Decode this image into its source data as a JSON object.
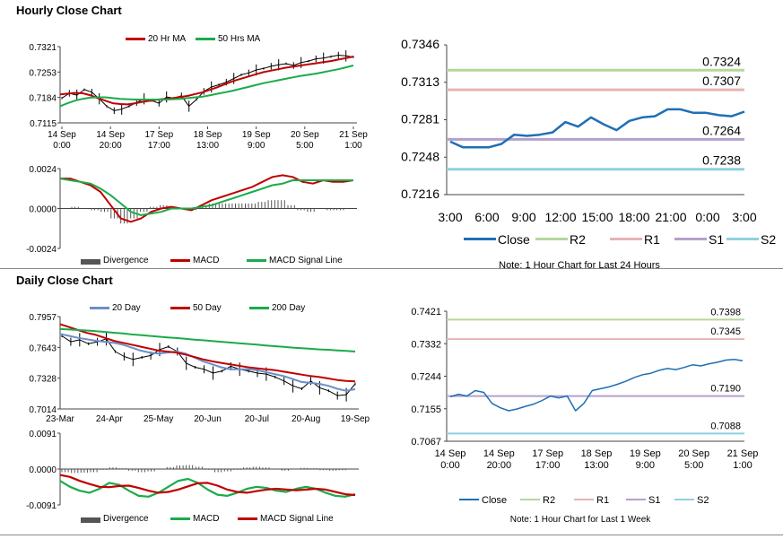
{
  "sections": {
    "hourly_title": "Hourly Close Chart",
    "daily_title": "Daily Close Chart"
  },
  "colors": {
    "ma_short": "#c00000",
    "ma_long": "#1aab4b",
    "close": "#1f6fb5",
    "r2": "#b5d79a",
    "r1": "#e6b3b3",
    "s1": "#b3a1cc",
    "s2": "#8fd0e0",
    "ma20_daily": "#6b8fc9",
    "divergence": "#555555"
  },
  "chart_data": [
    {
      "id": "hourly_price",
      "type": "line",
      "legend": [
        "20 Hr MA",
        "50 Hrs MA"
      ],
      "y_ticks": [
        "0.7321",
        "0.7253",
        "0.7184",
        "0.7115"
      ],
      "ylim": [
        0.7115,
        0.7321
      ],
      "x_labels": [
        [
          "14 Sep",
          "0:00"
        ],
        [
          "14 Sep",
          "20:00"
        ],
        [
          "17 Sep",
          "17:00"
        ],
        [
          "18 Sep",
          "13:00"
        ],
        [
          "19 Sep",
          "9:00"
        ],
        [
          "20 Sep",
          "5:00"
        ],
        [
          "21 Sep",
          "1:00"
        ]
      ],
      "series": [
        {
          "name": "Price",
          "values": [
            0.7182,
            0.7195,
            0.719,
            0.7205,
            0.7198,
            0.718,
            0.716,
            0.7148,
            0.7152,
            0.716,
            0.717,
            0.718,
            0.7175,
            0.7168,
            0.7185,
            0.7182,
            0.7188,
            0.716,
            0.7178,
            0.72,
            0.7212,
            0.7218,
            0.7225,
            0.7235,
            0.7245,
            0.725,
            0.7258,
            0.7262,
            0.7268,
            0.7272,
            0.7275,
            0.727,
            0.7278,
            0.7282,
            0.7288,
            0.729,
            0.7294,
            0.7298,
            0.7296,
            0.7293
          ]
        },
        {
          "name": "20 Hr MA",
          "values": [
            0.7192,
            0.7194,
            0.7196,
            0.7195,
            0.719,
            0.7182,
            0.7175,
            0.7168,
            0.7166,
            0.7165,
            0.7168,
            0.7172,
            0.7175,
            0.7178,
            0.718,
            0.7182,
            0.7185,
            0.7188,
            0.7193,
            0.7198,
            0.7205,
            0.7212,
            0.722,
            0.7228,
            0.7234,
            0.724,
            0.7246,
            0.7252,
            0.7256,
            0.726,
            0.7264,
            0.7267,
            0.727,
            0.7273,
            0.7276,
            0.7279,
            0.7282,
            0.7286,
            0.729,
            0.7294
          ]
        },
        {
          "name": "50 Hrs MA",
          "values": [
            0.716,
            0.7168,
            0.7175,
            0.718,
            0.7183,
            0.7184,
            0.7184,
            0.7182,
            0.718,
            0.7179,
            0.7178,
            0.7178,
            0.7178,
            0.7178,
            0.7178,
            0.7179,
            0.718,
            0.7182,
            0.7184,
            0.7186,
            0.719,
            0.7194,
            0.7198,
            0.7202,
            0.7207,
            0.7212,
            0.7217,
            0.7222,
            0.7226,
            0.723,
            0.7234,
            0.7238,
            0.7242,
            0.7245,
            0.7248,
            0.7252,
            0.7256,
            0.726,
            0.7265,
            0.727
          ]
        }
      ]
    },
    {
      "id": "hourly_macd",
      "type": "line",
      "legend": [
        "Divergence",
        "MACD",
        "MACD Signal Line"
      ],
      "y_ticks": [
        "0.0024",
        "0.0000",
        "-0.0024"
      ],
      "ylim": [
        -0.0024,
        0.0024
      ],
      "series": [
        {
          "name": "MACD",
          "values": [
            0.0018,
            0.0018,
            0.0016,
            0.0014,
            0.001,
            0.0002,
            -0.0006,
            -0.0008,
            -0.0006,
            -0.0002,
            0.0,
            0.0001,
            0.0,
            -0.0001,
            0.0002,
            0.0005,
            0.0007,
            0.0009,
            0.0011,
            0.0013,
            0.0016,
            0.0019,
            0.002,
            0.0019,
            0.0016,
            0.0015,
            0.0017,
            0.0016,
            0.0016,
            0.0017
          ]
        },
        {
          "name": "MACD Signal Line",
          "values": [
            0.0018,
            0.0017,
            0.0016,
            0.0015,
            0.0012,
            0.0008,
            0.0003,
            -0.0002,
            -0.0004,
            -0.0003,
            -0.0002,
            0.0,
            0.0,
            0.0,
            0.0001,
            0.0002,
            0.0004,
            0.0006,
            0.0008,
            0.001,
            0.0012,
            0.0014,
            0.0015,
            0.0017,
            0.0017,
            0.0017,
            0.0017,
            0.0017,
            0.0017,
            0.0017
          ]
        },
        {
          "name": "Divergence",
          "values": [
            0.0,
            0.0001,
            0.0,
            -0.0001,
            -0.0002,
            -0.0006,
            -0.0009,
            -0.0006,
            -0.0002,
            0.0001,
            0.0002,
            0.0001,
            0.0,
            -0.0001,
            0.0001,
            0.0003,
            0.0003,
            0.0003,
            0.0003,
            0.0003,
            0.0004,
            0.0005,
            0.0005,
            0.0002,
            -0.0001,
            -0.0002,
            0.0,
            -0.0001,
            -0.0001,
            0.0
          ]
        }
      ]
    },
    {
      "id": "hourly_24h",
      "type": "line",
      "title": "",
      "y_ticks": [
        "0.7346",
        "0.7313",
        "0.7281",
        "0.7248",
        "0.7216"
      ],
      "ylim": [
        0.7216,
        0.7346
      ],
      "x_labels": [
        "3:00",
        "6:00",
        "9:00",
        "12:00",
        "15:00",
        "18:00",
        "21:00",
        "0:00",
        "3:00"
      ],
      "legend": [
        "Close",
        "R2",
        "R1",
        "S1",
        "S2"
      ],
      "levels": [
        {
          "name": "R2",
          "value": 0.7324,
          "label": "0.7324"
        },
        {
          "name": "R1",
          "value": 0.7307,
          "label": "0.7307"
        },
        {
          "name": "S1",
          "value": 0.7264,
          "label": "0.7264"
        },
        {
          "name": "S2",
          "value": 0.7238,
          "label": "0.7238"
        }
      ],
      "series": [
        {
          "name": "Close",
          "values": [
            0.7262,
            0.7257,
            0.7257,
            0.7257,
            0.726,
            0.7268,
            0.7267,
            0.7268,
            0.727,
            0.7279,
            0.7275,
            0.7283,
            0.7277,
            0.7272,
            0.728,
            0.7283,
            0.7284,
            0.729,
            0.729,
            0.7287,
            0.7287,
            0.7285,
            0.7284,
            0.7288
          ]
        }
      ],
      "note": "Note: 1 Hour Chart for Last 24 Hours"
    },
    {
      "id": "daily_price",
      "type": "line",
      "legend": [
        "20 Day",
        "50 Day",
        "200 Day"
      ],
      "y_ticks": [
        "0.7957",
        "0.7643",
        "0.7328",
        "0.7014"
      ],
      "ylim": [
        0.7014,
        0.7957
      ],
      "x_labels": [
        "23-Mar",
        "24-Apr",
        "25-May",
        "20-Jun",
        "20-Jul",
        "20-Aug",
        "19-Sep"
      ],
      "series": [
        {
          "name": "Price",
          "values": [
            0.776,
            0.77,
            0.772,
            0.768,
            0.77,
            0.773,
            0.76,
            0.755,
            0.752,
            0.754,
            0.756,
            0.762,
            0.765,
            0.76,
            0.748,
            0.744,
            0.742,
            0.738,
            0.74,
            0.745,
            0.742,
            0.74,
            0.738,
            0.737,
            0.734,
            0.73,
            0.725,
            0.722,
            0.73,
            0.723,
            0.72,
            0.715,
            0.716,
            0.727
          ]
        },
        {
          "name": "20 Day",
          "values": [
            0.778,
            0.776,
            0.774,
            0.7725,
            0.771,
            0.77,
            0.769,
            0.767,
            0.764,
            0.761,
            0.759,
            0.758,
            0.759,
            0.76,
            0.758,
            0.754,
            0.75,
            0.747,
            0.744,
            0.742,
            0.742,
            0.742,
            0.741,
            0.739,
            0.737,
            0.735,
            0.732,
            0.729,
            0.728,
            0.727,
            0.725,
            0.722,
            0.72,
            0.7215
          ]
        },
        {
          "name": "50 Day",
          "values": [
            0.788,
            0.785,
            0.782,
            0.779,
            0.777,
            0.774,
            0.771,
            0.769,
            0.767,
            0.765,
            0.763,
            0.761,
            0.76,
            0.759,
            0.757,
            0.7545,
            0.752,
            0.75,
            0.7485,
            0.747,
            0.7455,
            0.744,
            0.743,
            0.742,
            0.741,
            0.7395,
            0.738,
            0.7365,
            0.735,
            0.734,
            0.7325,
            0.731,
            0.73,
            0.7295
          ]
        },
        {
          "name": "200 Day",
          "values": [
            0.783,
            0.7825,
            0.782,
            0.7815,
            0.7808,
            0.78,
            0.7792,
            0.7785,
            0.7775,
            0.7768,
            0.776,
            0.7752,
            0.7745,
            0.7738,
            0.773,
            0.7722,
            0.7715,
            0.7708,
            0.77,
            0.7692,
            0.7685,
            0.7678,
            0.767,
            0.7662,
            0.7655,
            0.7648,
            0.764,
            0.7635,
            0.7628,
            0.7622,
            0.7618,
            0.7612,
            0.7606,
            0.76
          ]
        }
      ]
    },
    {
      "id": "daily_macd",
      "type": "line",
      "legend": [
        "Divergence",
        "MACD",
        "MACD Signal Line"
      ],
      "y_ticks": [
        "0.0091",
        "0.0000",
        "-0.0091"
      ],
      "ylim": [
        -0.0091,
        0.0091
      ],
      "series": [
        {
          "name": "MACD",
          "values": [
            -0.003,
            -0.0045,
            -0.0055,
            -0.006,
            -0.005,
            -0.0035,
            -0.004,
            -0.0055,
            -0.0068,
            -0.007,
            -0.006,
            -0.0045,
            -0.003,
            -0.0025,
            -0.0035,
            -0.0052,
            -0.0065,
            -0.0068,
            -0.006,
            -0.005,
            -0.0045,
            -0.0048,
            -0.0055,
            -0.0058,
            -0.005,
            -0.0045,
            -0.005,
            -0.006,
            -0.0068,
            -0.007,
            -0.0064
          ]
        },
        {
          "name": "MACD Signal Line",
          "values": [
            -0.0015,
            -0.002,
            -0.003,
            -0.0038,
            -0.0045,
            -0.0046,
            -0.0043,
            -0.0042,
            -0.0048,
            -0.0055,
            -0.006,
            -0.0058,
            -0.0052,
            -0.0044,
            -0.0036,
            -0.0035,
            -0.0042,
            -0.0052,
            -0.0058,
            -0.006,
            -0.0056,
            -0.0052,
            -0.005,
            -0.0052,
            -0.0054,
            -0.0052,
            -0.005,
            -0.0052,
            -0.0058,
            -0.0064,
            -0.0066
          ]
        },
        {
          "name": "Divergence",
          "values": [
            -0.0008,
            -0.001,
            -0.0009,
            -0.0008,
            -0.0002,
            0.0004,
            0.0002,
            -0.0004,
            -0.0008,
            -0.0006,
            0.0,
            0.0005,
            0.0009,
            0.001,
            0.0006,
            -0.0002,
            -0.0008,
            -0.0006,
            -0.0002,
            0.0004,
            0.0006,
            0.0004,
            -0.0001,
            -0.0004,
            -0.0001,
            0.0003,
            0.0002,
            -0.0003,
            -0.0004,
            -0.0003,
            0.0
          ]
        }
      ]
    },
    {
      "id": "weekly_close",
      "type": "line",
      "y_ticks": [
        "0.7421",
        "0.7332",
        "0.7244",
        "0.7155",
        "0.7067"
      ],
      "ylim": [
        0.7067,
        0.7421
      ],
      "x_labels": [
        [
          "14 Sep",
          "0:00"
        ],
        [
          "14 Sep",
          "20:00"
        ],
        [
          "17 Sep",
          "17:00"
        ],
        [
          "18 Sep",
          "13:00"
        ],
        [
          "19 Sep",
          "9:00"
        ],
        [
          "20 Sep",
          "5:00"
        ],
        [
          "21 Sep",
          "1:00"
        ]
      ],
      "legend": [
        "Close",
        "R2",
        "R1",
        "S1",
        "S2"
      ],
      "levels": [
        {
          "name": "R2",
          "value": 0.7398,
          "label": "0.7398"
        },
        {
          "name": "R1",
          "value": 0.7345,
          "label": "0.7345"
        },
        {
          "name": "S1",
          "value": 0.719,
          "label": "0.7190"
        },
        {
          "name": "S2",
          "value": 0.7088,
          "label": "0.7088"
        }
      ],
      "series": [
        {
          "name": "Close",
          "values": [
            0.7188,
            0.7195,
            0.719,
            0.7205,
            0.72,
            0.717,
            0.7158,
            0.715,
            0.7155,
            0.7162,
            0.7168,
            0.7178,
            0.719,
            0.7185,
            0.719,
            0.715,
            0.717,
            0.7205,
            0.721,
            0.7215,
            0.7222,
            0.723,
            0.724,
            0.7248,
            0.7252,
            0.726,
            0.7265,
            0.7262,
            0.7268,
            0.7275,
            0.7272,
            0.7278,
            0.7282,
            0.7288,
            0.729,
            0.7286
          ]
        }
      ],
      "note": "Note: 1 Hour Chart for Last 1 Week"
    }
  ]
}
